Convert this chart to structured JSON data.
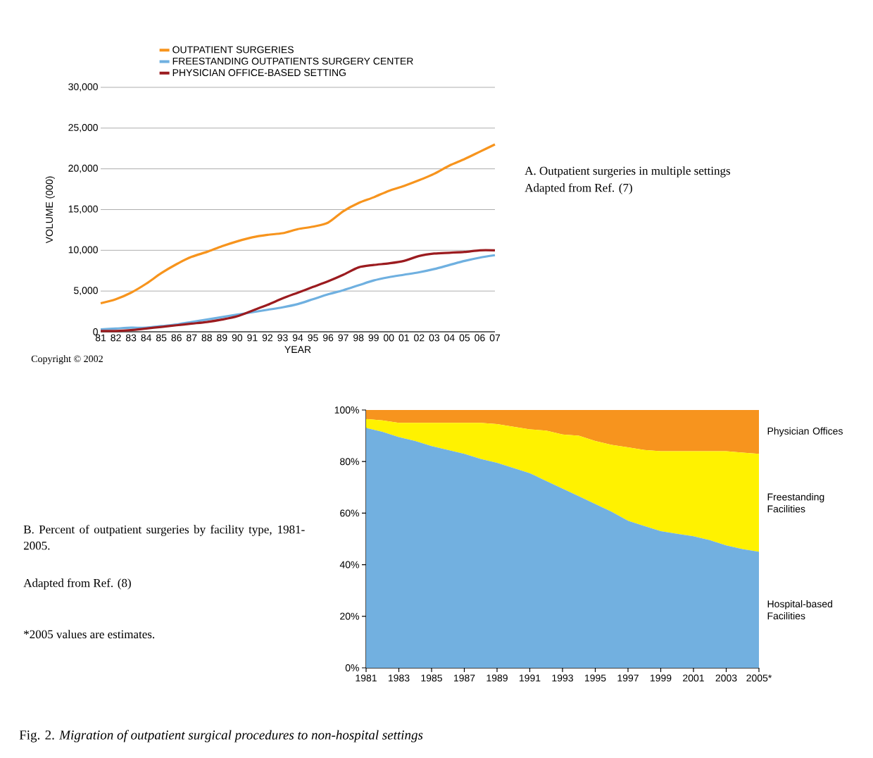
{
  "chart_data": [
    {
      "type": "line",
      "xlabel": "YEAR",
      "ylabel": "VOLUME (000)",
      "categories": [
        "81",
        "82",
        "83",
        "84",
        "85",
        "86",
        "87",
        "88",
        "89",
        "90",
        "91",
        "92",
        "93",
        "94",
        "95",
        "96",
        "97",
        "98",
        "99",
        "00",
        "01",
        "02",
        "03",
        "04",
        "05",
        "06",
        "07"
      ],
      "series": [
        {
          "name": "OUTPATIENT SURGERIES",
          "color": "#f7941d",
          "values": [
            3500,
            4000,
            4800,
            5900,
            7200,
            8300,
            9200,
            9800,
            10500,
            11100,
            11600,
            11900,
            12100,
            12600,
            12900,
            13400,
            14800,
            15800,
            16500,
            17300,
            17900,
            18600,
            19400,
            20400,
            21200,
            22100,
            23000
          ]
        },
        {
          "name": "FREESTANDING OUTPATIENTS SURGERY CENTER",
          "color": "#6fb0e0",
          "values": [
            300,
            400,
            500,
            500,
            700,
            900,
            1200,
            1500,
            1800,
            2100,
            2400,
            2700,
            3000,
            3400,
            4000,
            4600,
            5100,
            5700,
            6300,
            6700,
            7000,
            7300,
            7700,
            8200,
            8700,
            9100,
            9400
          ]
        },
        {
          "name": "PHYSICIAN OFFICE-BASED SETTING",
          "color": "#9b1b1f",
          "values": [
            100,
            100,
            200,
            400,
            600,
            800,
            1000,
            1200,
            1500,
            1900,
            2600,
            3300,
            4100,
            4800,
            5500,
            6200,
            7000,
            7900,
            8200,
            8400,
            8700,
            9300,
            9600,
            9700,
            9800,
            10000,
            10000
          ]
        }
      ],
      "ylim": [
        0,
        30000
      ],
      "yticks": [
        0,
        {
          "value": 5000,
          "label": "5,000"
        },
        {
          "value": 10000,
          "label": "10,000"
        },
        {
          "value": 15000,
          "label": "15,000"
        },
        {
          "value": 20000,
          "label": "20,000"
        },
        {
          "value": 25000,
          "label": "25,000"
        },
        {
          "value": 30000,
          "label": "30,000"
        }
      ],
      "grid": "y",
      "legend": "top left",
      "annotations": [
        "A. Outpatient surgeries in multiple settings",
        "Adapted from Ref. (7)",
        "Copyright © 2002"
      ]
    },
    {
      "type": "area",
      "stacked": true,
      "x": [
        1981,
        1982,
        1983,
        1984,
        1985,
        1986,
        1987,
        1988,
        1989,
        1990,
        1991,
        1992,
        1993,
        1994,
        1995,
        1996,
        1997,
        1998,
        1999,
        2000,
        2001,
        2002,
        2003,
        2004,
        2005
      ],
      "series": [
        {
          "name": "Hospital-based Facilities",
          "color": "#72b0e0",
          "values": [
            93,
            91.5,
            89.5,
            88,
            86,
            84.5,
            83,
            81,
            79.5,
            77.5,
            75.5,
            72.5,
            69.5,
            66.5,
            63.5,
            60.5,
            57,
            55,
            53,
            52,
            51,
            49.5,
            47.5,
            46,
            45
          ]
        },
        {
          "name": "Freestanding Facilities",
          "color": "#fff200",
          "values": [
            3.5,
            4.5,
            5.5,
            7,
            9,
            10.5,
            12,
            14,
            15,
            16,
            17,
            19.5,
            21,
            23.5,
            24.5,
            26,
            28.5,
            29.5,
            31,
            32,
            33,
            34.5,
            36.5,
            37.5,
            38
          ]
        },
        {
          "name": "Physician Offices",
          "color": "#f7941e",
          "values": [
            3.5,
            4,
            5,
            5,
            5,
            5,
            5,
            5,
            5.5,
            6.5,
            7.5,
            8,
            9.5,
            10,
            12,
            13.5,
            14.5,
            15.5,
            16,
            16,
            16,
            16,
            16,
            16.5,
            17
          ]
        }
      ],
      "xlim": [
        1981,
        2005
      ],
      "xticks": [
        1981,
        1983,
        1985,
        1987,
        1989,
        1991,
        1993,
        1995,
        1997,
        1999,
        2001,
        2003,
        {
          "value": 2005,
          "label": "2005*"
        }
      ],
      "ylim": [
        0,
        100
      ],
      "yticks": [
        {
          "value": 0,
          "label": "0%"
        },
        {
          "value": 20,
          "label": "20%"
        },
        {
          "value": 40,
          "label": "40%"
        },
        {
          "value": 60,
          "label": "60%"
        },
        {
          "value": 80,
          "label": "80%"
        },
        {
          "value": 100,
          "label": "100%"
        }
      ],
      "legend": false,
      "annotations": [
        "B. Percent of outpatient surgeries by facility type, 1981-2005.",
        "Adapted from Ref. (8)",
        "*2005 values are estimates.",
        "Fig. 2. *Migration of outpatient surgical procedures to non-hospital settings*"
      ]
    }
  ]
}
